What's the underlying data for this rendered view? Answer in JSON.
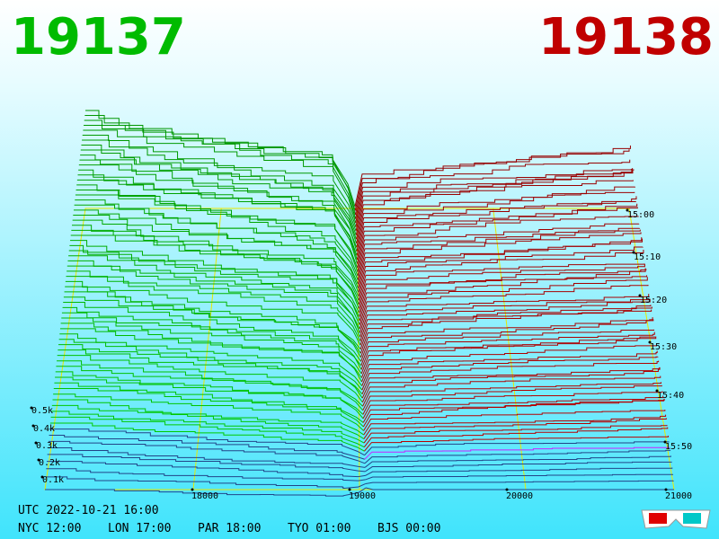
{
  "header": {
    "bid": "19137",
    "ask": "19138"
  },
  "price_axis": [
    "18000",
    "19000",
    "20000",
    "21000"
  ],
  "depth_axis": [
    "0.5k",
    "0.4k",
    "0.3k",
    "0.2k",
    "0.1k"
  ],
  "time_axis": [
    "15:00",
    "15:10",
    "15:20",
    "15:30",
    "15:40",
    "15:50"
  ],
  "footer": {
    "utc": "UTC 2022-10-21 16:00",
    "clocks": [
      "NYC 12:00",
      "LON 17:00",
      "PAR 18:00",
      "TYO 01:00",
      "BJS 00:00"
    ]
  }
}
